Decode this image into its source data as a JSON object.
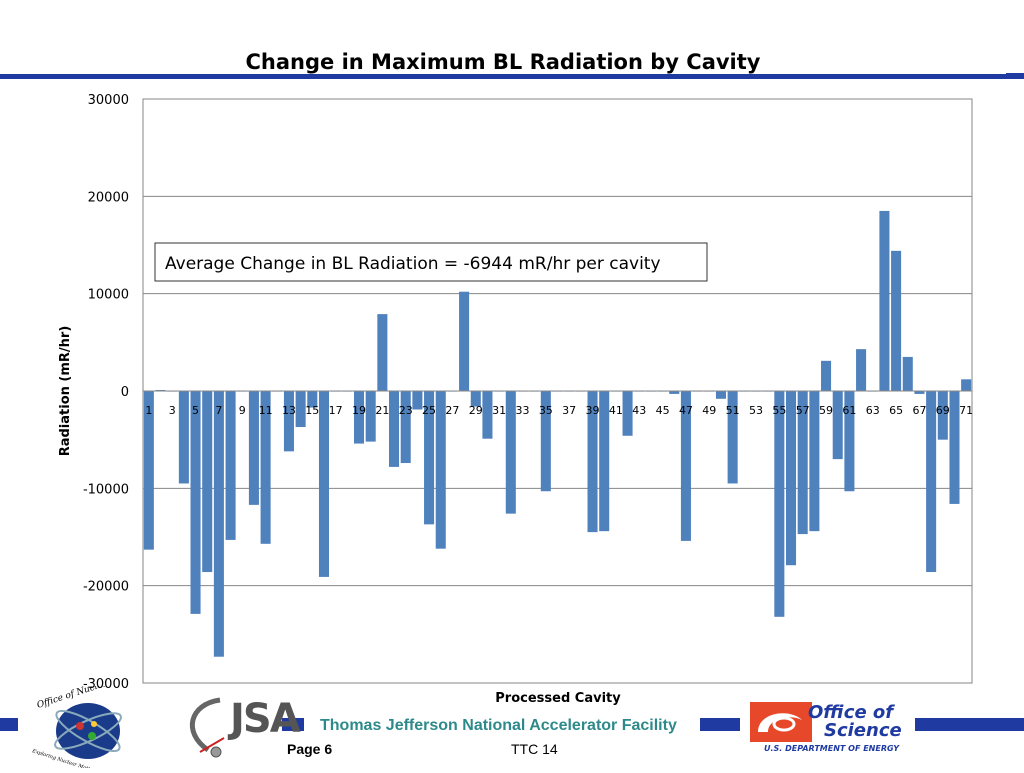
{
  "footer": {
    "organization": "Thomas Jefferson National Accelerator Facility",
    "page_label": "Page 6",
    "conference": "TTC 14"
  },
  "logos": {
    "nuclear_physics": {
      "text": "Office of Nuclear Physics",
      "motto": "Exploring Nuclear Matter - Quarks to Stars"
    },
    "jsa": {
      "text": "JSA"
    },
    "doe": {
      "line1": "Office of",
      "line2": "Science",
      "line3": "U.S. DEPARTMENT OF ENERGY"
    }
  },
  "colors": {
    "bar": "#4f81bd",
    "band": "#1f3aa0",
    "footer_text": "#2e8a8a"
  },
  "chart_data": {
    "type": "bar",
    "title": "Change in Maximum BL Radiation by Cavity",
    "xlabel": "Processed Cavity",
    "ylabel": "Radiation (mR/hr)",
    "ylim": [
      -30000,
      30000
    ],
    "yticks": [
      30000,
      20000,
      10000,
      0,
      -10000,
      -20000,
      -30000
    ],
    "grid": true,
    "annotation": "Average Change in BL Radiation = -6944 mR/hr per cavity",
    "x_tick_labels": [
      "1",
      "3",
      "5",
      "7",
      "9",
      "11",
      "13",
      "15",
      "17",
      "19",
      "21",
      "23",
      "25",
      "27",
      "29",
      "31",
      "33",
      "35",
      "37",
      "39",
      "41",
      "43",
      "45",
      "47",
      "49",
      "51",
      "53",
      "55",
      "57",
      "59",
      "61",
      "63",
      "65",
      "67",
      "69",
      "71"
    ],
    "categories": [
      1,
      2,
      3,
      4,
      5,
      6,
      7,
      8,
      9,
      10,
      11,
      12,
      13,
      14,
      15,
      16,
      17,
      18,
      19,
      20,
      21,
      22,
      23,
      24,
      25,
      26,
      27,
      28,
      29,
      30,
      31,
      32,
      33,
      34,
      35,
      36,
      37,
      38,
      39,
      40,
      41,
      42,
      43,
      44,
      45,
      46,
      47,
      48,
      49,
      50,
      51,
      52,
      53,
      54,
      55,
      56,
      57,
      58,
      59,
      60,
      61,
      62,
      63,
      64,
      65,
      66,
      67,
      68,
      69,
      70,
      71
    ],
    "values": [
      -16300,
      100,
      0,
      -9500,
      -22900,
      -18600,
      -27300,
      -15300,
      0,
      -11700,
      -15700,
      0,
      -6200,
      -3700,
      -1700,
      -19100,
      0,
      0,
      -5400,
      -5200,
      7900,
      -7800,
      -7400,
      -1900,
      -13700,
      -16200,
      0,
      10200,
      -1600,
      -4900,
      0,
      -12600,
      0,
      0,
      -10300,
      0,
      0,
      0,
      -14500,
      -14400,
      0,
      -4600,
      0,
      0,
      0,
      -300,
      -15400,
      0,
      0,
      -800,
      -9500,
      0,
      0,
      0,
      -23200,
      -17900,
      -14700,
      -14400,
      3100,
      -7000,
      -10300,
      4300,
      0,
      18500,
      14400,
      3500,
      -300,
      -18600,
      -5000,
      -11600,
      1200
    ]
  }
}
